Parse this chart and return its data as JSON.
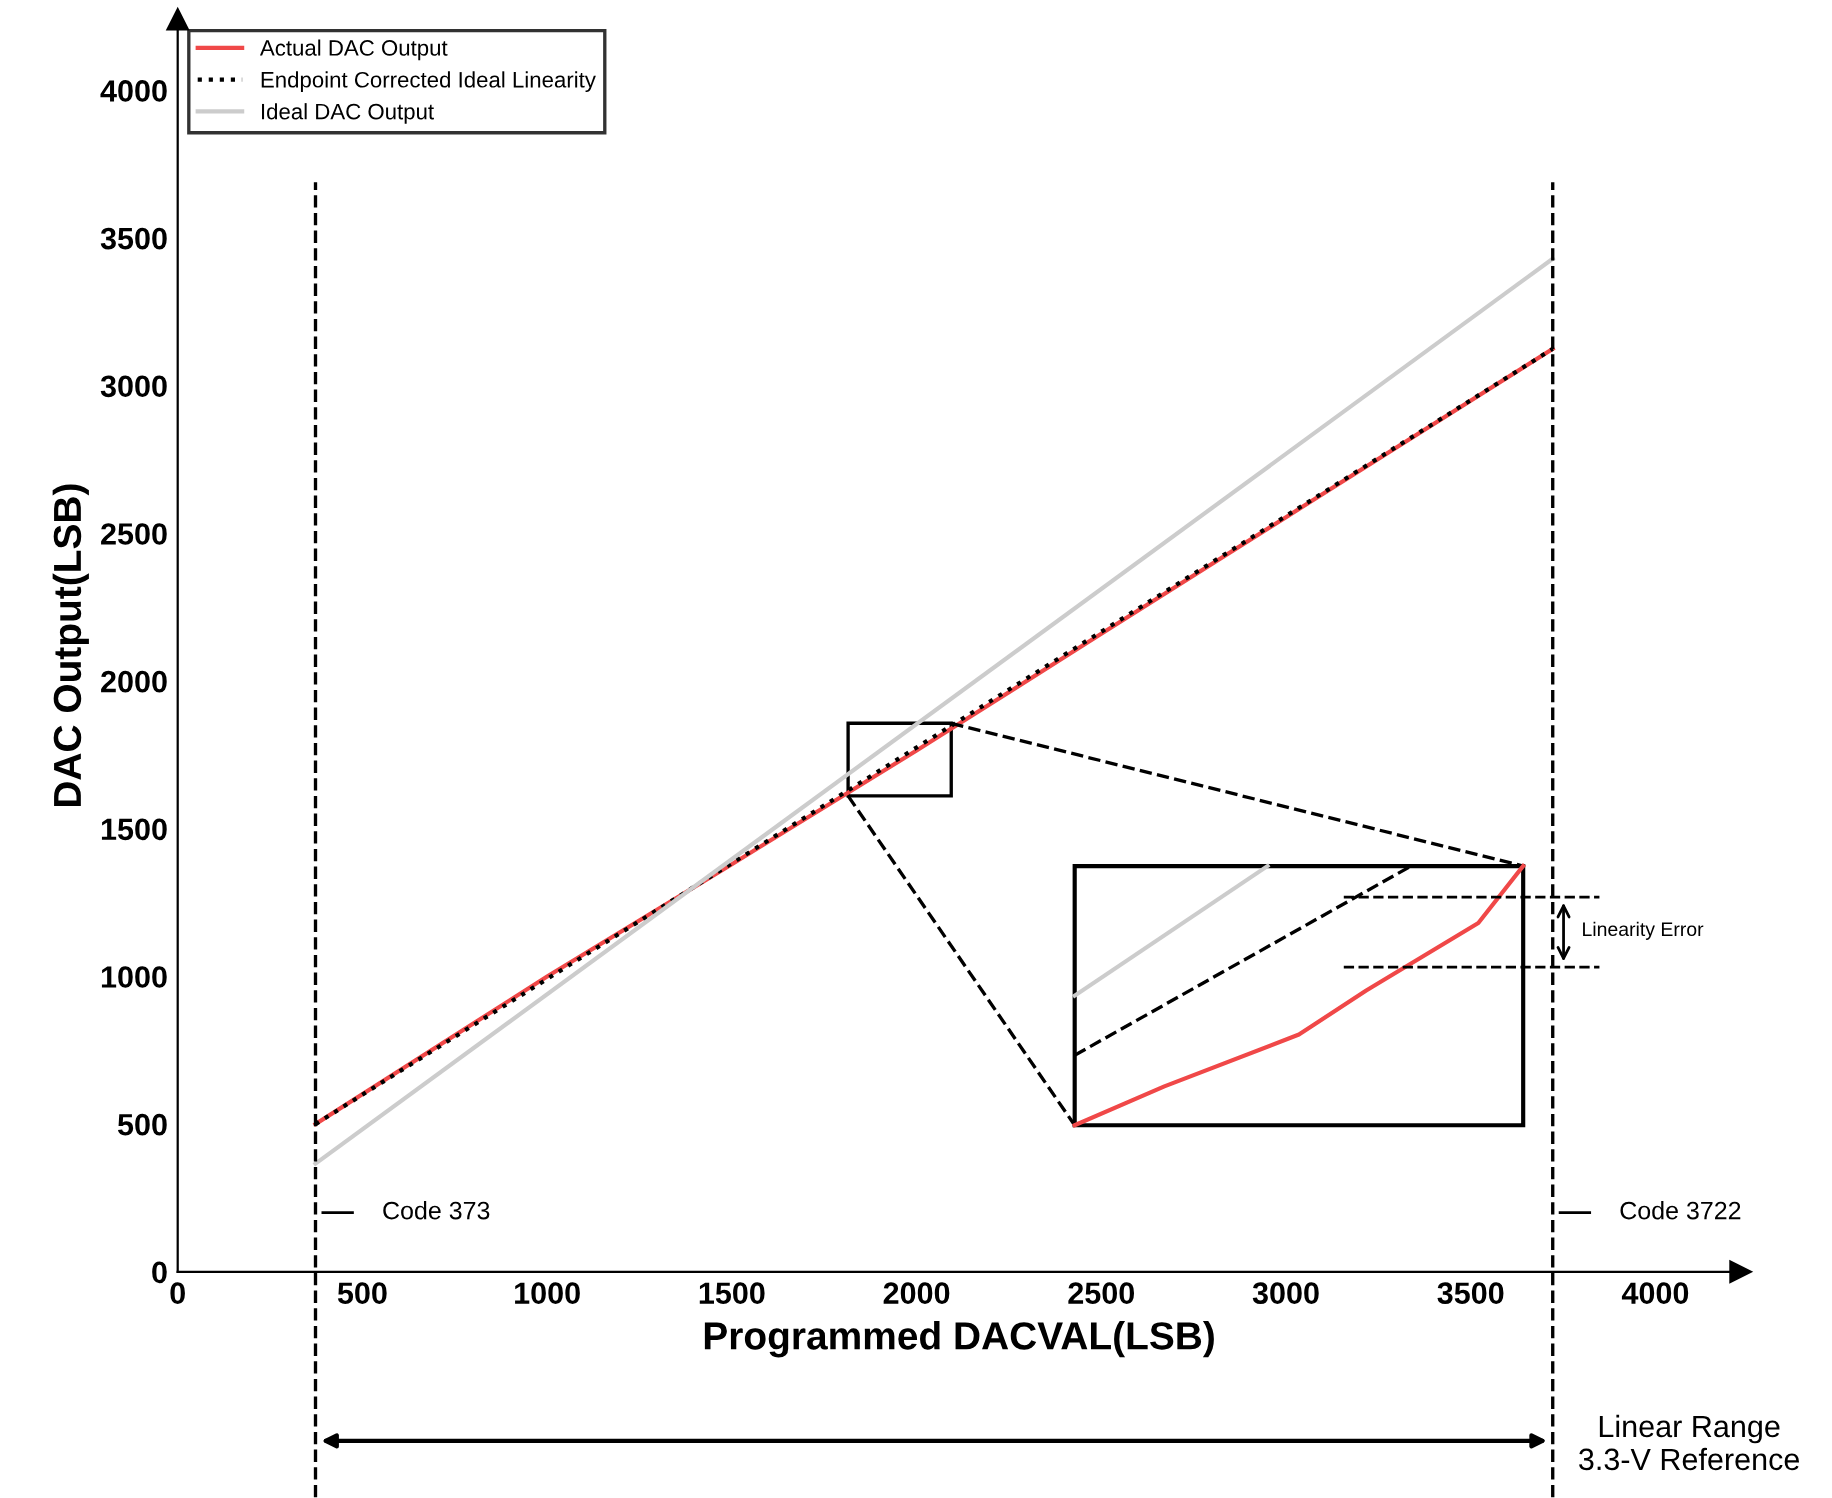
{
  "chart_data": {
    "type": "line",
    "xlabel": "Programmed DACVAL(LSB)",
    "ylabel": "DAC Output(LSB)",
    "xlim": [
      0,
      4230
    ],
    "ylim": [
      0,
      4240
    ],
    "xticks": [
      0,
      500,
      1000,
      1500,
      2000,
      2500,
      3000,
      3500,
      4000
    ],
    "yticks": [
      0,
      500,
      1000,
      1500,
      2000,
      2500,
      3000,
      3500,
      4000
    ],
    "grid": false,
    "legend": "top left",
    "series": [
      {
        "name": "Actual DAC Output",
        "color": "#f04848",
        "line_style": "solid",
        "x": [
          373,
          1000,
          1500,
          2000,
          2500,
          3000,
          3722
        ],
        "values": [
          500,
          1000,
          1380,
          1765,
          2160,
          2555,
          3125
        ]
      },
      {
        "name": "Endpoint Corrected Ideal Linearity",
        "color": "#000000",
        "line_style": "dotted",
        "x": [
          373,
          3722
        ],
        "values": [
          500,
          3125
        ]
      },
      {
        "name": "Ideal DAC Output",
        "color": "#cccccc",
        "line_style": "solid",
        "x": [
          373,
          3722
        ],
        "values": [
          366,
          3430
        ]
      }
    ],
    "ref_lines": [
      {
        "axis": "x",
        "value": 373,
        "label": "Code 373",
        "line_style": "dashed",
        "color": "#000000"
      },
      {
        "axis": "x",
        "value": 3722,
        "label": "Code 3722",
        "line_style": "dashed",
        "color": "#000000"
      }
    ],
    "annotations": [
      "Linear Range\n3.3-V Reference",
      "Linearity Error"
    ]
  }
}
